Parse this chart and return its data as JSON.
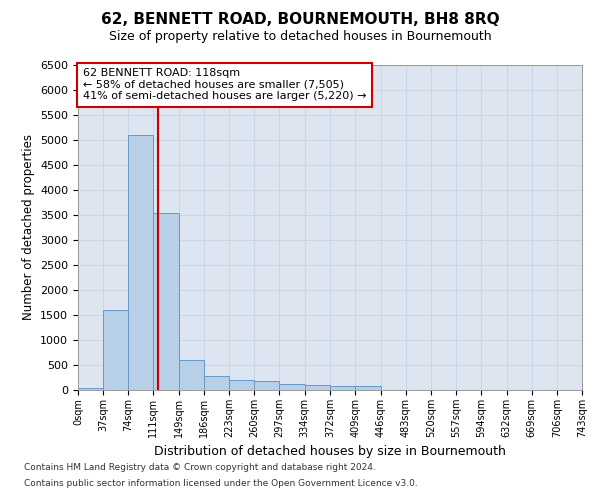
{
  "title": "62, BENNETT ROAD, BOURNEMOUTH, BH8 8RQ",
  "subtitle": "Size of property relative to detached houses in Bournemouth",
  "xlabel": "Distribution of detached houses by size in Bournemouth",
  "ylabel": "Number of detached properties",
  "footnote1": "Contains HM Land Registry data © Crown copyright and database right 2024.",
  "footnote2": "Contains public sector information licensed under the Open Government Licence v3.0.",
  "bin_edges": [
    0,
    37,
    74,
    111,
    149,
    186,
    223,
    260,
    297,
    334,
    372,
    409,
    446,
    483,
    520,
    557,
    594,
    632,
    669,
    706,
    743
  ],
  "bin_labels": [
    "0sqm",
    "37sqm",
    "74sqm",
    "111sqm",
    "149sqm",
    "186sqm",
    "223sqm",
    "260sqm",
    "297sqm",
    "334sqm",
    "372sqm",
    "409sqm",
    "446sqm",
    "483sqm",
    "520sqm",
    "557sqm",
    "594sqm",
    "632sqm",
    "669sqm",
    "706sqm",
    "743sqm"
  ],
  "bar_heights": [
    50,
    1600,
    5100,
    3550,
    600,
    280,
    200,
    175,
    130,
    100,
    75,
    75,
    0,
    0,
    0,
    0,
    0,
    0,
    0,
    0
  ],
  "bar_color": "#b8cfe8",
  "bar_edge_color": "#6699cc",
  "vline_x": 118,
  "vline_color": "#cc0000",
  "ylim": [
    0,
    6500
  ],
  "yticks": [
    0,
    500,
    1000,
    1500,
    2000,
    2500,
    3000,
    3500,
    4000,
    4500,
    5000,
    5500,
    6000,
    6500
  ],
  "annotation_text": "62 BENNETT ROAD: 118sqm\n← 58% of detached houses are smaller (7,505)\n41% of semi-detached houses are larger (5,220) →",
  "annotation_box_color": "#ffffff",
  "annotation_box_edge": "#cc0000",
  "grid_color": "#c8d4e8",
  "bg_color": "#dde5f0"
}
